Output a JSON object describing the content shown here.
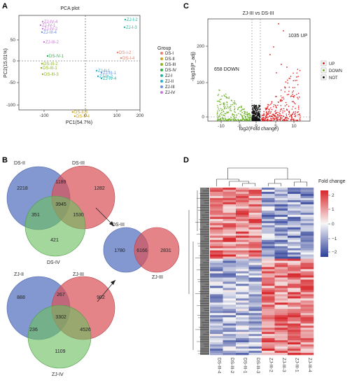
{
  "panels": {
    "A": "A",
    "B": "B",
    "C": "C",
    "D": "D"
  },
  "pca": {
    "title": "PCA plot",
    "xlabel": "PC1(54.7%)",
    "ylabel": "PC2(15.01%)",
    "xticks": [
      "-100",
      "0",
      "100",
      "200"
    ],
    "yticks": [
      "0",
      "-50",
      "-100",
      "50"
    ],
    "legend_title": "Group",
    "groups": [
      {
        "name": "DS-I",
        "color": "#e8806c"
      },
      {
        "name": "DS-II",
        "color": "#c9a31a"
      },
      {
        "name": "DS-III",
        "color": "#8ab51e"
      },
      {
        "name": "DS-IV",
        "color": "#2db34b"
      },
      {
        "name": "ZJ-I",
        "color": "#22b8a0"
      },
      {
        "name": "ZJ-II",
        "color": "#1fb0d6"
      },
      {
        "name": "ZJ-III",
        "color": "#6b8ee8"
      },
      {
        "name": "ZJ-IV",
        "color": "#c978d9"
      }
    ],
    "sample_labels": [
      {
        "text": "ZJ-IV-4",
        "group": "ZJ-IV"
      },
      {
        "text": "ZJ-IV-2",
        "group": "ZJ-IV"
      },
      {
        "text": "ZJ-IV-1",
        "group": "ZJ-IV"
      },
      {
        "text": "ZJ-III-4",
        "group": "ZJ-III"
      },
      {
        "text": "ZJ-III-2",
        "group": "ZJ-IV"
      },
      {
        "text": "ZJ-I-2",
        "group": "ZJ-I"
      },
      {
        "text": "ZJ-I-3",
        "group": "ZJ-I"
      },
      {
        "text": "DS-I-2",
        "group": "DS-I"
      },
      {
        "text": "DS-I-4",
        "group": "DS-I"
      },
      {
        "text": "DS-IV-1",
        "group": "DS-IV"
      },
      {
        "text": "DS-III-2",
        "group": "DS-III"
      },
      {
        "text": "DS-III-1",
        "group": "DS-III"
      },
      {
        "text": "DS-III-3",
        "group": "DS-III"
      },
      {
        "text": "ZJ-II-1",
        "group": "ZJ-II"
      },
      {
        "text": "ZJ-III-2",
        "group": "ZJ-II"
      },
      {
        "text": "ZJ-III-1",
        "group": "ZJ-III"
      },
      {
        "text": "ZJ-IV-4",
        "group": "ZJ-I"
      },
      {
        "text": "DS-II-3",
        "group": "DS-II"
      },
      {
        "text": "DS-II-4",
        "group": "DS-II"
      }
    ]
  },
  "volcano": {
    "title": "ZJ-III vs DS-III",
    "ylabel": "-log10(P_adj)",
    "xlabel": "log2(Fold change)",
    "xticks": [
      "-10",
      "-5",
      "0",
      "5",
      "10"
    ],
    "yticks": [
      "0",
      "100",
      "200"
    ],
    "up_label": "1035 UP",
    "down_label": "658 DOWN",
    "legend": [
      {
        "name": "UP",
        "color": "#e41a1c"
      },
      {
        "name": "DOWN",
        "color": "#6ab023"
      },
      {
        "name": "NOT",
        "color": "#111111"
      }
    ]
  },
  "venn_top": {
    "labels": {
      "a": "DS-II",
      "b": "DS-III",
      "c": "DS-IV"
    },
    "counts": {
      "a": "2218",
      "ab": "1189",
      "b": "1282",
      "abc": "3945",
      "ac": "351",
      "bc": "1530",
      "c": "421"
    }
  },
  "venn_bottom": {
    "labels": {
      "a": "ZJ-II",
      "b": "ZJ-III",
      "c": "ZJ-IV"
    },
    "counts": {
      "a": "888",
      "ab": "267",
      "b": "902",
      "abc": "3302",
      "ac": "236",
      "bc": "4526",
      "c": "1109"
    }
  },
  "venn_pair": {
    "labels": {
      "a": "DS-III",
      "b": "ZJ-III"
    },
    "counts": {
      "a": "1780",
      "ab": "6166",
      "b": "2831"
    }
  },
  "heatmap": {
    "legend_title": "Fold change",
    "legend_ticks": [
      "2",
      "1",
      "0",
      "−1",
      "−2"
    ],
    "columns": [
      "DS-III-4",
      "DS-III-2",
      "DS-III-1",
      "DS-III-3",
      "ZJ-III-2",
      "ZJ-III-3",
      "ZJ-III-1",
      "ZJ-III-4"
    ]
  }
}
